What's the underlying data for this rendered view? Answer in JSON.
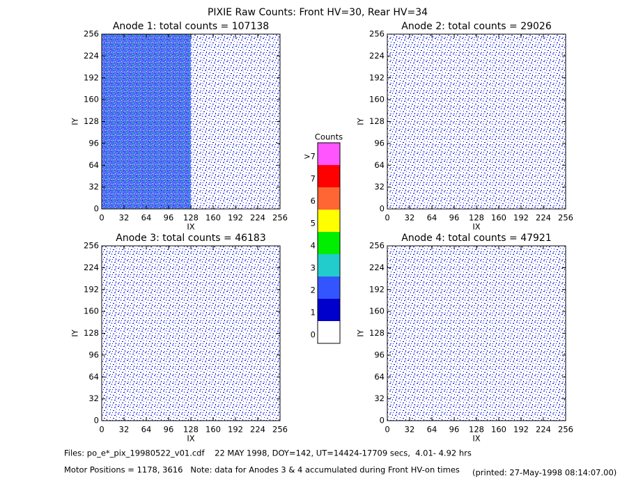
{
  "title": "PIXIE Raw Counts:  Front HV=30, Rear HV=34",
  "chart_data": [
    {
      "type": "heatmap",
      "title": "Anode 1: total counts = 107138",
      "xlabel": "IX",
      "ylabel": "IY",
      "xlim": [
        0,
        256
      ],
      "ylim": [
        0,
        256
      ],
      "xticks": [
        0,
        32,
        64,
        96,
        128,
        160,
        192,
        224,
        256
      ],
      "yticks": [
        0,
        32,
        64,
        96,
        128,
        160,
        192,
        224,
        256
      ]
    },
    {
      "type": "heatmap",
      "title": "Anode 2: total counts = 29026",
      "xlabel": "IX",
      "ylabel": "IY",
      "xlim": [
        0,
        256
      ],
      "ylim": [
        0,
        256
      ],
      "xticks": [
        0,
        32,
        64,
        96,
        128,
        160,
        192,
        224,
        256
      ],
      "yticks": [
        0,
        32,
        64,
        96,
        128,
        160,
        192,
        224,
        256
      ]
    },
    {
      "type": "heatmap",
      "title": "Anode 3: total counts = 46183",
      "xlabel": "IX",
      "ylabel": "IY",
      "xlim": [
        0,
        256
      ],
      "ylim": [
        0,
        256
      ],
      "xticks": [
        0,
        32,
        64,
        96,
        128,
        160,
        192,
        224,
        256
      ],
      "yticks": [
        0,
        32,
        64,
        96,
        128,
        160,
        192,
        224,
        256
      ]
    },
    {
      "type": "heatmap",
      "title": "Anode 4: total counts = 47921",
      "xlabel": "IX",
      "ylabel": "IY",
      "xlim": [
        0,
        256
      ],
      "ylim": [
        0,
        256
      ],
      "xticks": [
        0,
        32,
        64,
        96,
        128,
        160,
        192,
        224,
        256
      ],
      "yticks": [
        0,
        32,
        64,
        96,
        128,
        160,
        192,
        224,
        256
      ]
    },
    {
      "type": "colorbar",
      "title": "Counts",
      "categories": [
        ">7",
        "7",
        "6",
        "5",
        "4",
        "3",
        "2",
        "1",
        "0"
      ],
      "colors": [
        "#ff55ff",
        "#ff0000",
        "#ff6633",
        "#ffff00",
        "#00ee00",
        "#22cccc",
        "#3355ff",
        "#0000cc",
        "#ffffff"
      ]
    }
  ],
  "footer": {
    "files": "Files: po_e*_pix_19980522_v01.cdf    22 MAY 1998, DOY=142, UT=14424-17709 secs,  4.01- 4.92 hrs",
    "motor": "Motor Positions = 1178, 3616   Note: data for Anodes 3 & 4 accumulated during Front HV-on times",
    "printed": "(printed: 27-May-1998 08:14:07.00)"
  }
}
